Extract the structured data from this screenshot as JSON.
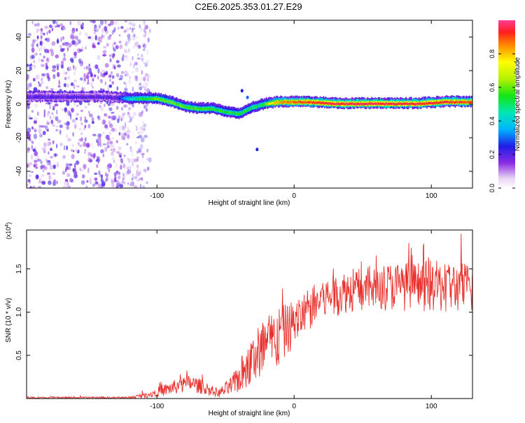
{
  "page_title": "C2E6.2025.353.01.27.E29",
  "chart_data": [
    {
      "type": "heatmap",
      "title": "C2E6.2025.353.01.27.E29",
      "xlabel": "Height of straight line (km)",
      "ylabel": "Frequency (Hz)",
      "xlim": [
        -195,
        130
      ],
      "ylim": [
        -50,
        50
      ],
      "x_ticks": [
        -100,
        0,
        100
      ],
      "x_tick_labels": [
        "-100",
        "0",
        "100"
      ],
      "y_ticks": [
        -40,
        -20,
        0,
        20,
        40
      ],
      "y_tick_labels": [
        "-40",
        "-20",
        "0",
        "20",
        "40"
      ],
      "colorbar": {
        "label": "Normalized spectral amplitude",
        "range": [
          0.0,
          1.0
        ],
        "ticks": [
          0.0,
          0.2,
          0.4,
          0.6,
          0.8
        ],
        "tick_labels": [
          "0.0",
          "0.2",
          "0.4",
          "0.6",
          "0.8"
        ]
      },
      "center_line": [
        {
          "x": -195,
          "y": 4
        },
        {
          "x": -140,
          "y": 4
        },
        {
          "x": -120,
          "y": 3
        },
        {
          "x": -100,
          "y": 3
        },
        {
          "x": -90,
          "y": 1
        },
        {
          "x": -80,
          "y": -2
        },
        {
          "x": -70,
          "y": -3
        },
        {
          "x": -60,
          "y": -3
        },
        {
          "x": -50,
          "y": -5
        },
        {
          "x": -40,
          "y": -6
        },
        {
          "x": -30,
          "y": -2
        },
        {
          "x": -20,
          "y": 0
        },
        {
          "x": -10,
          "y": 1
        },
        {
          "x": 0,
          "y": 1
        },
        {
          "x": 10,
          "y": 1
        },
        {
          "x": 30,
          "y": 0
        },
        {
          "x": 60,
          "y": 0
        },
        {
          "x": 90,
          "y": 0
        },
        {
          "x": 110,
          "y": 1
        },
        {
          "x": 130,
          "y": 1
        }
      ],
      "amplitude_profile": [
        {
          "x": -195,
          "amp": 0.2
        },
        {
          "x": -130,
          "amp": 0.2
        },
        {
          "x": -120,
          "amp": 0.45
        },
        {
          "x": -100,
          "amp": 0.6
        },
        {
          "x": -80,
          "amp": 0.6
        },
        {
          "x": -60,
          "amp": 0.55
        },
        {
          "x": -40,
          "amp": 0.55
        },
        {
          "x": -25,
          "amp": 0.5
        },
        {
          "x": -15,
          "amp": 0.8
        },
        {
          "x": 0,
          "amp": 0.88
        },
        {
          "x": 30,
          "amp": 0.95
        },
        {
          "x": 80,
          "amp": 0.95
        },
        {
          "x": 130,
          "amp": 0.9
        }
      ],
      "noise_region": {
        "x_from": -195,
        "x_to": -105,
        "amp": 0.18
      }
    },
    {
      "type": "line",
      "xlabel": "Height of straight line (km)",
      "ylabel": "SNR (10 * v/v)",
      "multiplier_label": "(x10",
      "multiplier_exp": "4",
      "multiplier_close": ")",
      "xlim": [
        -195,
        130
      ],
      "ylim": [
        0,
        1.95
      ],
      "x_ticks": [
        -100,
        0,
        100
      ],
      "x_tick_labels": [
        "-100",
        "0",
        "100"
      ],
      "y_ticks": [
        0.5,
        1.0,
        1.5
      ],
      "y_tick_labels": [
        "0.5",
        "1.0",
        "1.5"
      ],
      "series_color": "#e8302c",
      "envelope": [
        {
          "x": -195,
          "mean": 0.01,
          "spread": 0.01
        },
        {
          "x": -120,
          "mean": 0.01,
          "spread": 0.01
        },
        {
          "x": -105,
          "mean": 0.05,
          "spread": 0.04
        },
        {
          "x": -90,
          "mean": 0.12,
          "spread": 0.08
        },
        {
          "x": -75,
          "mean": 0.18,
          "spread": 0.1
        },
        {
          "x": -65,
          "mean": 0.12,
          "spread": 0.08
        },
        {
          "x": -55,
          "mean": 0.06,
          "spread": 0.05
        },
        {
          "x": -45,
          "mean": 0.15,
          "spread": 0.12
        },
        {
          "x": -35,
          "mean": 0.35,
          "spread": 0.25
        },
        {
          "x": -25,
          "mean": 0.55,
          "spread": 0.35
        },
        {
          "x": -15,
          "mean": 0.65,
          "spread": 0.4
        },
        {
          "x": -5,
          "mean": 0.8,
          "spread": 0.3
        },
        {
          "x": 5,
          "mean": 0.95,
          "spread": 0.25
        },
        {
          "x": 20,
          "mean": 1.15,
          "spread": 0.25
        },
        {
          "x": 40,
          "mean": 1.25,
          "spread": 0.25
        },
        {
          "x": 70,
          "mean": 1.3,
          "spread": 0.28
        },
        {
          "x": 100,
          "mean": 1.3,
          "spread": 0.3
        },
        {
          "x": 130,
          "mean": 1.28,
          "spread": 0.3
        }
      ]
    }
  ],
  "colors": {
    "line": "#e8302c",
    "axis": "#000000",
    "background": "#ffffff"
  }
}
